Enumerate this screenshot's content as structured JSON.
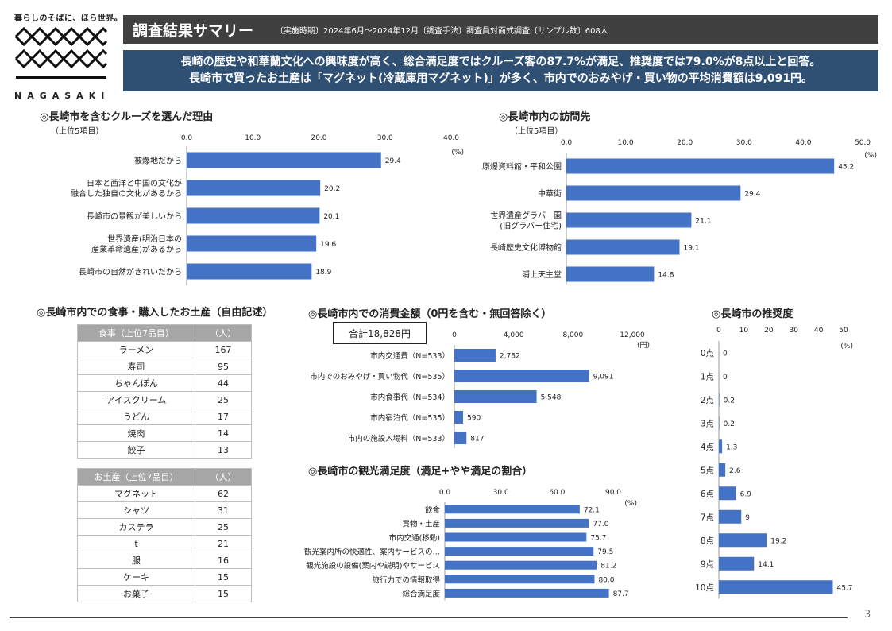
{
  "logo": {
    "tagline": "暮らしのそばに、ほら世界。",
    "name": "NAGASAKI"
  },
  "header": {
    "title": "調査結果サマリー",
    "meta": "〔実施時期〕2024年6月～2024年12月〔調査手法〕調査員対面式調査〔サンプル数〕608人"
  },
  "summary": {
    "line1": "長崎の歴史や和華蘭文化への興味度が高く、総合満足度ではクルーズ客の87.7%が満足、推奨度では79.0%が8点以上と回答。",
    "line2": "長崎市で買ったお土産は「マグネット(冷蔵庫用マグネット)」が多く、市内でのおみやげ・買い物の平均消費額は9,091円。"
  },
  "colors": {
    "bar": "#4472c4",
    "header_bg": "#404040",
    "summary_bg": "#2f4f73"
  },
  "reasons": {
    "title": "◎長崎市を含むクルーズを選んだ理由",
    "subtitle": "（上位5項目）",
    "unit": "(%)",
    "chart_data": {
      "type": "bar",
      "orientation": "horizontal",
      "categories": [
        "被爆地だから",
        "日本と西洋と中国の文化が|融合した独自の文化があるから",
        "長崎市の景観が美しいから",
        "世界遺産(明治日本の|産業革命遺産)があるから",
        "長崎市の自然がきれいだから"
      ],
      "values": [
        29.4,
        20.2,
        20.1,
        19.6,
        18.9
      ],
      "value_labels": [
        "29.4",
        "20.2",
        "20.1",
        "19.6",
        "18.9"
      ],
      "ticks": [
        "0.0",
        "10.0",
        "20.0",
        "30.0",
        "40.0"
      ],
      "xlim": [
        0,
        40
      ]
    }
  },
  "visits": {
    "title": "◎長崎市内の訪問先",
    "subtitle": "（上位5項目）",
    "unit": "(%)",
    "chart_data": {
      "type": "bar",
      "orientation": "horizontal",
      "categories": [
        "原爆資料館・平和公園",
        "中華街",
        "世界遺産グラバー園|(旧グラバー住宅)",
        "長崎歴史文化博物館",
        "浦上天主堂"
      ],
      "values": [
        45.2,
        29.4,
        21.1,
        19.1,
        14.8
      ],
      "value_labels": [
        "45.2",
        "29.4",
        "21.1",
        "19.1",
        "14.8"
      ],
      "ticks": [
        "0.0",
        "10.0",
        "20.0",
        "30.0",
        "40.0",
        "50.0"
      ],
      "xlim": [
        0,
        50
      ]
    }
  },
  "purchases": {
    "title": "◎長崎市内での食事・購入したお土産（自由記述）",
    "food": {
      "headers": [
        "食事（上位7品目）",
        "（人）"
      ],
      "rows": [
        [
          "ラーメン",
          "167"
        ],
        [
          "寿司",
          "95"
        ],
        [
          "ちゃんぽん",
          "44"
        ],
        [
          "アイスクリーム",
          "25"
        ],
        [
          "うどん",
          "17"
        ],
        [
          "焼肉",
          "14"
        ],
        [
          "餃子",
          "13"
        ]
      ]
    },
    "souvenir": {
      "headers": [
        "お土産（上位7品目）",
        "（人）"
      ],
      "rows": [
        [
          "マグネット",
          "62"
        ],
        [
          "シャツ",
          "31"
        ],
        [
          "カステラ",
          "25"
        ],
        [
          "t",
          "21"
        ],
        [
          "服",
          "16"
        ],
        [
          "ケーキ",
          "15"
        ],
        [
          "お菓子",
          "15"
        ]
      ]
    }
  },
  "spending": {
    "title": "◎長崎市内での消費金額（0円を含む・無回答除く）",
    "total": "合計18,828円",
    "unit": "(円)",
    "chart_data": {
      "type": "bar",
      "orientation": "horizontal",
      "categories": [
        "市内交通費（N=533）",
        "市内でのおみやげ・買い物代（N=535）",
        "市内食事代（N=534）",
        "市内宿泊代（N=535）",
        "市内の施設入場料（N=533）"
      ],
      "values": [
        2782,
        9091,
        5548,
        590,
        817
      ],
      "value_labels": [
        "2,782",
        "9,091",
        "5,548",
        "590",
        "817"
      ],
      "ticks": [
        "0",
        "4,000",
        "8,000",
        "12,000"
      ],
      "xlim": [
        0,
        12000
      ]
    }
  },
  "satisfaction": {
    "title": "◎長崎市の観光満足度（満足+やや満足の割合）",
    "unit": "(%)",
    "chart_data": {
      "type": "bar",
      "orientation": "horizontal",
      "categories": [
        "飲食",
        "買物・土産",
        "市内交通(移動)",
        "観光案内所の快適性、案内サービスの…",
        "観光施設の設備(案内や説明)やサービス",
        "旅行力での情報取得",
        "総合満足度"
      ],
      "values": [
        72.1,
        77.0,
        75.7,
        79.5,
        81.2,
        80.0,
        87.7
      ],
      "value_labels": [
        "72.1",
        "77.0",
        "75.7",
        "79.5",
        "81.2",
        "80.0",
        "87.7"
      ],
      "ticks": [
        "0.0",
        "30.0",
        "60.0",
        "90.0"
      ],
      "xlim": [
        0,
        90
      ]
    }
  },
  "recommend": {
    "title": "◎長崎市の推奨度",
    "unit": "(%)",
    "chart_data": {
      "type": "bar",
      "orientation": "horizontal",
      "categories": [
        "0点",
        "1点",
        "2点",
        "3点",
        "4点",
        "5点",
        "6点",
        "7点",
        "8点",
        "9点",
        "10点"
      ],
      "values": [
        0,
        0,
        0.2,
        0.2,
        1.3,
        2.6,
        6.9,
        9,
        19.2,
        14.1,
        45.7
      ],
      "value_labels": [
        "0",
        "0",
        "0.2",
        "0.2",
        "1.3",
        "2.6",
        "6.9",
        "9",
        "19.2",
        "14.1",
        "45.7"
      ],
      "ticks": [
        "0",
        "10",
        "20",
        "30",
        "40",
        "50"
      ],
      "xlim": [
        0,
        50
      ]
    }
  },
  "page_number": "3"
}
